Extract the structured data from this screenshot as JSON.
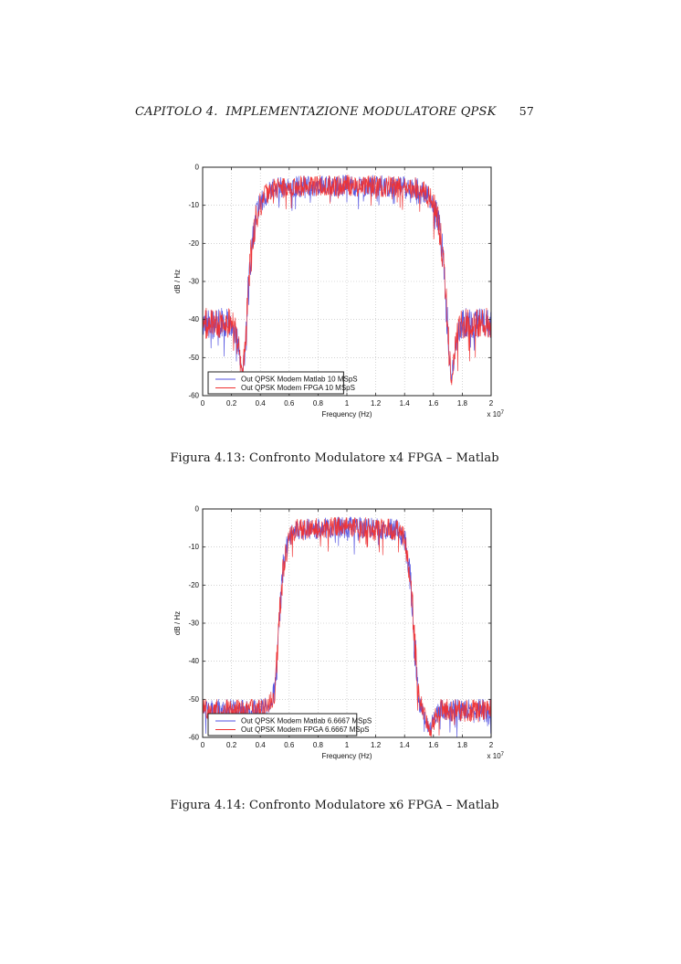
{
  "page": {
    "header": {
      "title": "CAPITOLO 4.  IMPLEMENTAZIONE MODULATORE QPSK",
      "page_number": "57"
    }
  },
  "figures": [
    {
      "caption": "Figura 4.13: Confronto Modulatore x4 FPGA – Matlab"
    },
    {
      "caption": "Figura 4.14: Confronto Modulatore x6 FPGA – Matlab"
    }
  ],
  "chart_data": [
    {
      "type": "line",
      "title": "",
      "xlabel": "Frequency (Hz)",
      "ylabel": "dB / Hz",
      "x_scale_label": "x 10",
      "x_scale_exponent": "7",
      "xlim": [
        0,
        2
      ],
      "ylim": [
        -60,
        0
      ],
      "xticks": [
        0,
        0.2,
        0.4,
        0.6,
        0.8,
        1,
        1.2,
        1.4,
        1.6,
        1.8,
        2
      ],
      "xtick_labels": [
        "0",
        "0.2",
        "0.4",
        "0.6",
        "0.8",
        "1",
        "1.2",
        "1.4",
        "1.6",
        "1.8",
        "2"
      ],
      "yticks": [
        0,
        -10,
        -20,
        -30,
        -40,
        -50,
        -60
      ],
      "ytick_labels": [
        "0",
        "-10",
        "-20",
        "-30",
        "-40",
        "-50",
        "-60"
      ],
      "grid": true,
      "legend_position": "bottom-left",
      "series": [
        {
          "name": "Out QPSK Modem Matlab 10 MSpS",
          "color": "#5050e0"
        },
        {
          "name": "Out QPSK Modem FPGA 10 MSpS",
          "color": "#f03030"
        }
      ],
      "envelope_db": [
        [
          0,
          -41,
          4
        ],
        [
          0.18,
          -41,
          4
        ],
        [
          0.22,
          -42,
          4
        ],
        [
          0.25,
          -47,
          3
        ],
        [
          0.275,
          -55,
          2
        ],
        [
          0.3,
          -44,
          6
        ],
        [
          0.33,
          -24,
          5
        ],
        [
          0.37,
          -13,
          4
        ],
        [
          0.42,
          -8,
          3
        ],
        [
          0.5,
          -5.5,
          2.8
        ],
        [
          0.7,
          -5,
          2.8
        ],
        [
          1,
          -4.8,
          2.8
        ],
        [
          1.3,
          -5,
          2.8
        ],
        [
          1.5,
          -5.5,
          2.8
        ],
        [
          1.58,
          -8,
          3
        ],
        [
          1.63,
          -13,
          4
        ],
        [
          1.67,
          -24,
          5
        ],
        [
          1.7,
          -44,
          6
        ],
        [
          1.725,
          -56,
          2
        ],
        [
          1.75,
          -47,
          3
        ],
        [
          1.78,
          -42,
          4
        ],
        [
          1.82,
          -41,
          4
        ],
        [
          2,
          -41,
          4
        ]
      ]
    },
    {
      "type": "line",
      "title": "",
      "xlabel": "Frequency (Hz)",
      "ylabel": "dB / Hz",
      "x_scale_label": "x 10",
      "x_scale_exponent": "7",
      "xlim": [
        0,
        2
      ],
      "ylim": [
        -60,
        0
      ],
      "xticks": [
        0,
        0.2,
        0.4,
        0.6,
        0.8,
        1,
        1.2,
        1.4,
        1.6,
        1.8,
        2
      ],
      "xtick_labels": [
        "0",
        "0.2",
        "0.4",
        "0.6",
        "0.8",
        "1",
        "1.2",
        "1.4",
        "1.6",
        "1.8",
        "2"
      ],
      "yticks": [
        0,
        -10,
        -20,
        -30,
        -40,
        -50,
        -60
      ],
      "ytick_labels": [
        "0",
        "-10",
        "-20",
        "-30",
        "-40",
        "-50",
        "-60"
      ],
      "grid": true,
      "legend_position": "bottom-left",
      "series": [
        {
          "name": "Out QPSK Modem Matlab 6.6667 MSpS",
          "color": "#5050e0"
        },
        {
          "name": "Out QPSK Modem FPGA 6.6667 MSpS",
          "color": "#f03030"
        }
      ],
      "envelope_db": [
        [
          0,
          -53,
          3
        ],
        [
          0.4,
          -53,
          3
        ],
        [
          0.43,
          -52,
          2.5
        ],
        [
          0.47,
          -50.5,
          2.5
        ],
        [
          0.5,
          -48,
          3
        ],
        [
          0.53,
          -30,
          5
        ],
        [
          0.56,
          -15,
          4
        ],
        [
          0.6,
          -7.5,
          3
        ],
        [
          0.65,
          -5.5,
          2.8
        ],
        [
          1,
          -4.8,
          2.8
        ],
        [
          1.35,
          -5.5,
          2.8
        ],
        [
          1.4,
          -8,
          3
        ],
        [
          1.44,
          -18,
          4
        ],
        [
          1.47,
          -35,
          5
        ],
        [
          1.5,
          -50,
          3
        ],
        [
          1.53,
          -53,
          2.5
        ],
        [
          1.57,
          -58,
          2
        ],
        [
          1.61,
          -55,
          2.5
        ],
        [
          1.65,
          -53,
          3
        ],
        [
          2,
          -53,
          3
        ]
      ]
    }
  ]
}
